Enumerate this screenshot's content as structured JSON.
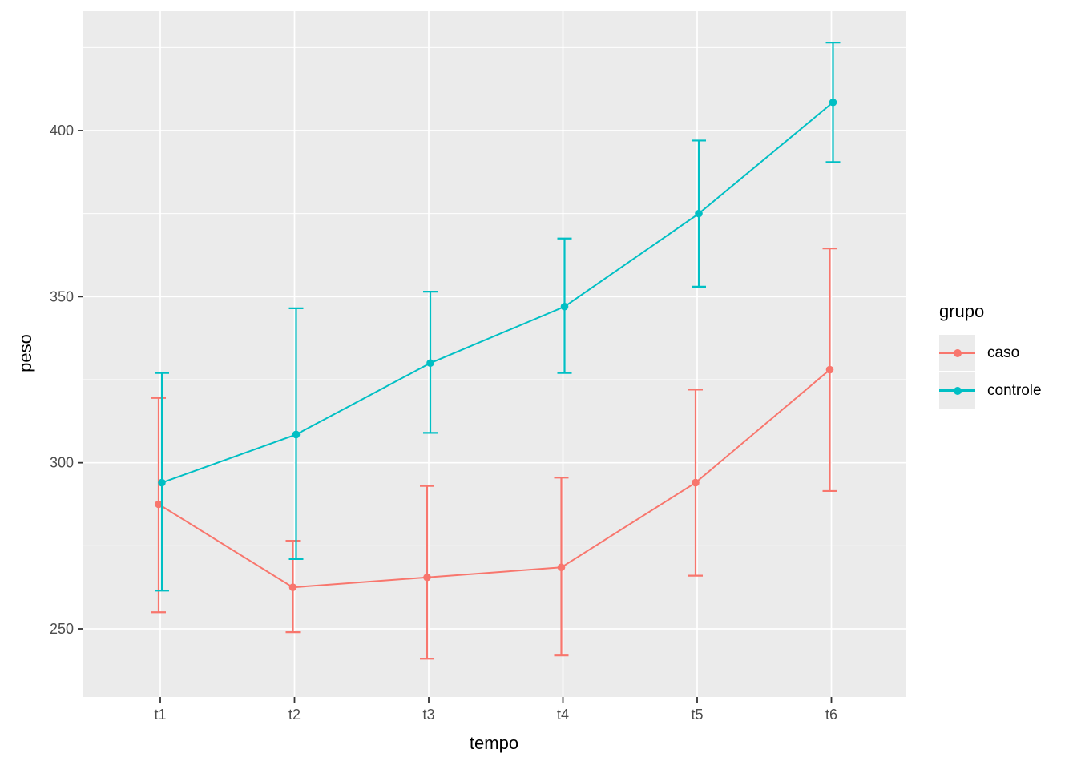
{
  "figure": {
    "panel_bg": "#EBEBEB",
    "grid_color": "#FFFFFF",
    "tick_color": "#333333",
    "axis_text_color": "#4D4D4D",
    "axis_title_color": "#000000",
    "legend_key_bg": "#EBEBEB"
  },
  "chart_data": {
    "type": "line",
    "title": "",
    "xlabel": "tempo",
    "ylabel": "peso",
    "categories": [
      "t1",
      "t2",
      "t3",
      "t4",
      "t5",
      "t6"
    ],
    "y_ticks": [
      250,
      300,
      350,
      400
    ],
    "y_minor_ticks": [
      275,
      325,
      375,
      425
    ],
    "ylim": [
      229,
      436
    ],
    "grid": true,
    "legend": {
      "title": "grupo",
      "position": "right"
    },
    "series": [
      {
        "name": "caso",
        "color": "#F8766D",
        "values": [
          287.5,
          262.5,
          265.5,
          268.5,
          294,
          328
        ],
        "ci_lower": [
          255,
          249,
          241,
          242,
          266,
          291.5
        ],
        "ci_upper": [
          319.5,
          276.5,
          293,
          295.5,
          322,
          364.5
        ]
      },
      {
        "name": "controle",
        "color": "#00BFC4",
        "values": [
          294,
          308.5,
          330,
          347,
          375,
          408.5
        ],
        "ci_lower": [
          261.5,
          271,
          309,
          327,
          353,
          390.5
        ],
        "ci_upper": [
          327,
          346.5,
          351.5,
          367.5,
          397,
          426.5
        ]
      }
    ]
  }
}
